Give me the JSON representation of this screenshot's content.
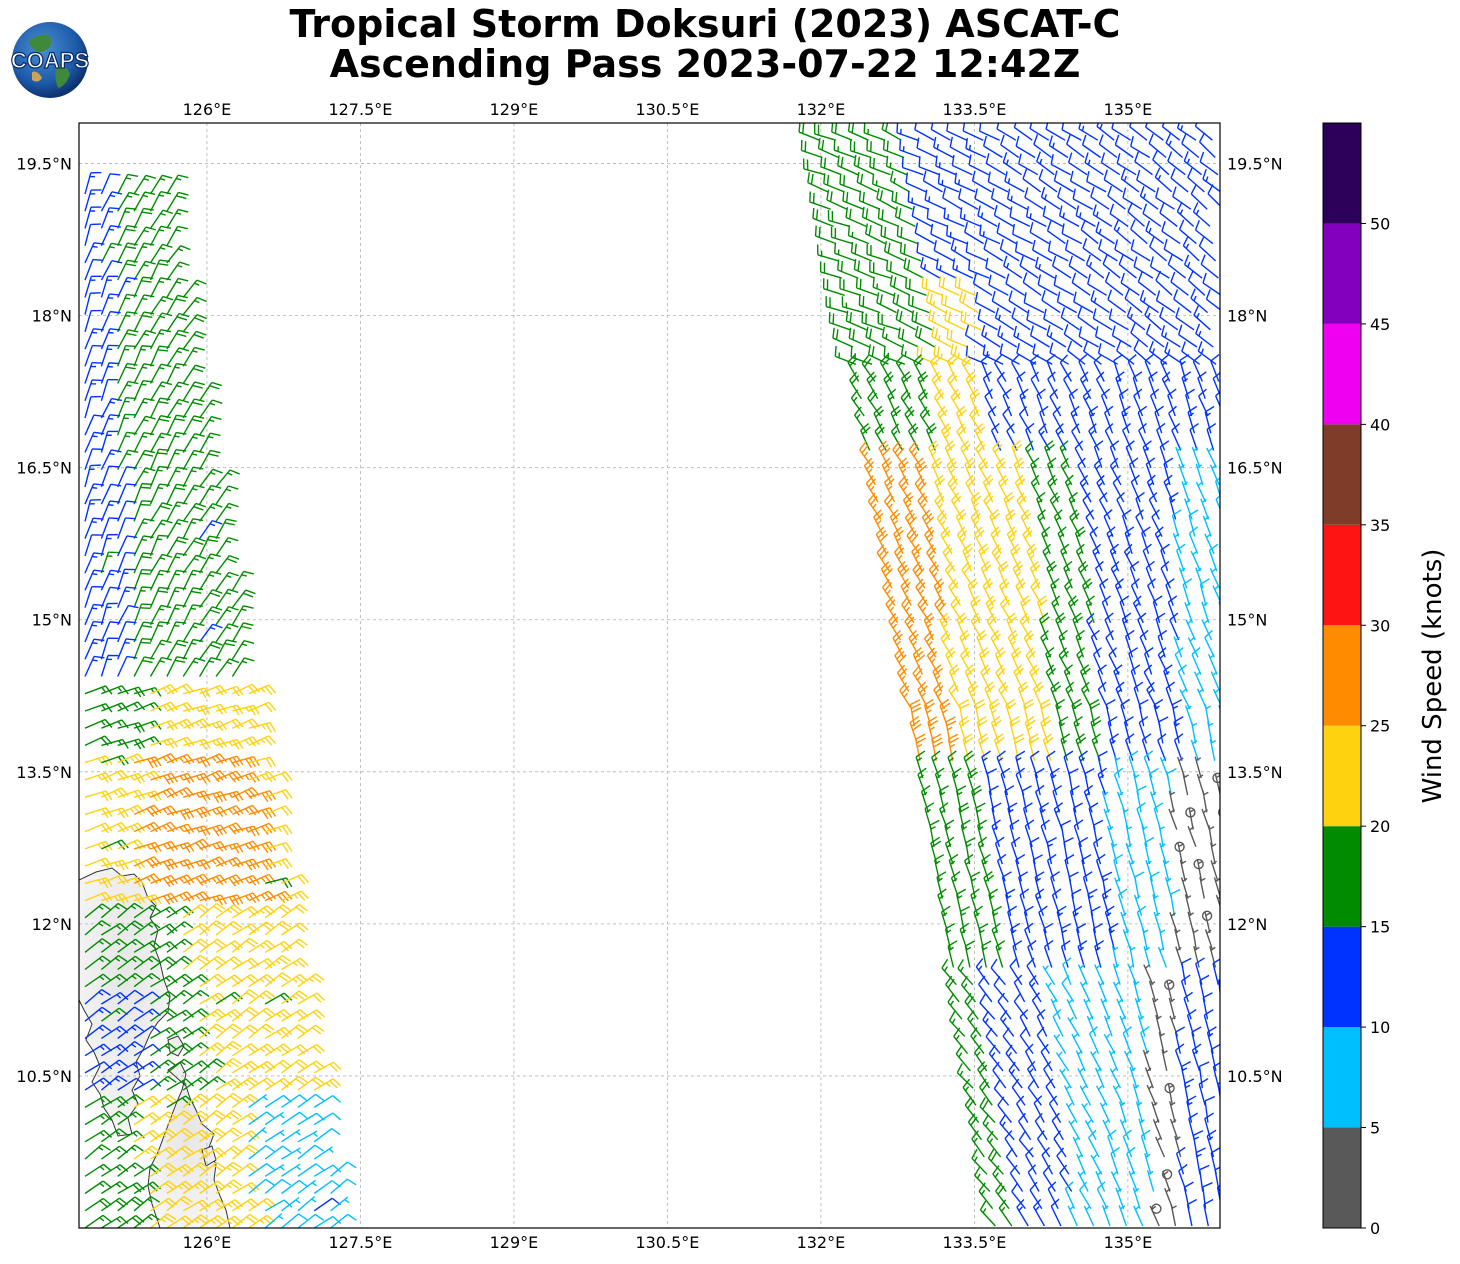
{
  "title": {
    "line1": "Tropical Storm Doksuri (2023) ASCAT-C",
    "line2": "Ascending Pass 2023-07-22 12:42Z"
  },
  "logo": {
    "text": "COAPS"
  },
  "map": {
    "lon_range": [
      124.75,
      135.9
    ],
    "lat_range": [
      9.0,
      19.9
    ],
    "lon_ticks": [
      "126°E",
      "127.5°E",
      "129°E",
      "130.5°E",
      "132°E",
      "133.5°E",
      "135°E"
    ],
    "lon_tick_values": [
      126,
      127.5,
      129,
      130.5,
      132,
      133.5,
      135
    ],
    "lat_ticks": [
      "19.5°N",
      "18°N",
      "16.5°N",
      "15°N",
      "13.5°N",
      "12°N",
      "10.5°N"
    ],
    "lat_tick_values": [
      19.5,
      18,
      16.5,
      15,
      13.5,
      12,
      10.5
    ],
    "grid": true
  },
  "colorbar": {
    "label": "Wind Speed (knots)",
    "ticks": [
      "0",
      "5",
      "10",
      "15",
      "20",
      "25",
      "30",
      "35",
      "40",
      "45",
      "50"
    ],
    "bins": [
      {
        "min": 0,
        "max": 5,
        "color": "#595959"
      },
      {
        "min": 5,
        "max": 10,
        "color": "#00bfff"
      },
      {
        "min": 10,
        "max": 15,
        "color": "#0033ff"
      },
      {
        "min": 15,
        "max": 20,
        "color": "#008c00"
      },
      {
        "min": 20,
        "max": 25,
        "color": "#ffd20f"
      },
      {
        "min": 25,
        "max": 30,
        "color": "#ff8c00"
      },
      {
        "min": 30,
        "max": 35,
        "color": "#ff1414"
      },
      {
        "min": 35,
        "max": 40,
        "color": "#7f3c28"
      },
      {
        "min": 40,
        "max": 45,
        "color": "#f000f0"
      },
      {
        "min": 45,
        "max": 50,
        "color": "#8200be"
      },
      {
        "min": 50,
        "max": 55,
        "color": "#2d0059"
      }
    ]
  },
  "swaths": {
    "west": {
      "lon_top_west": 124.75,
      "lon_top_east": 125.55,
      "lon_bottom_west": 124.75,
      "lon_bottom_east": 127.25,
      "lat_top": 19.2,
      "lat_bottom": 9.0
    },
    "east": {
      "lon_top_west": 131.9,
      "lon_top_east": 135.9,
      "lon_bottom_west": 133.65,
      "lon_bottom_east": 135.9,
      "lat_top": 19.9,
      "lat_bottom": 9.0
    }
  }
}
